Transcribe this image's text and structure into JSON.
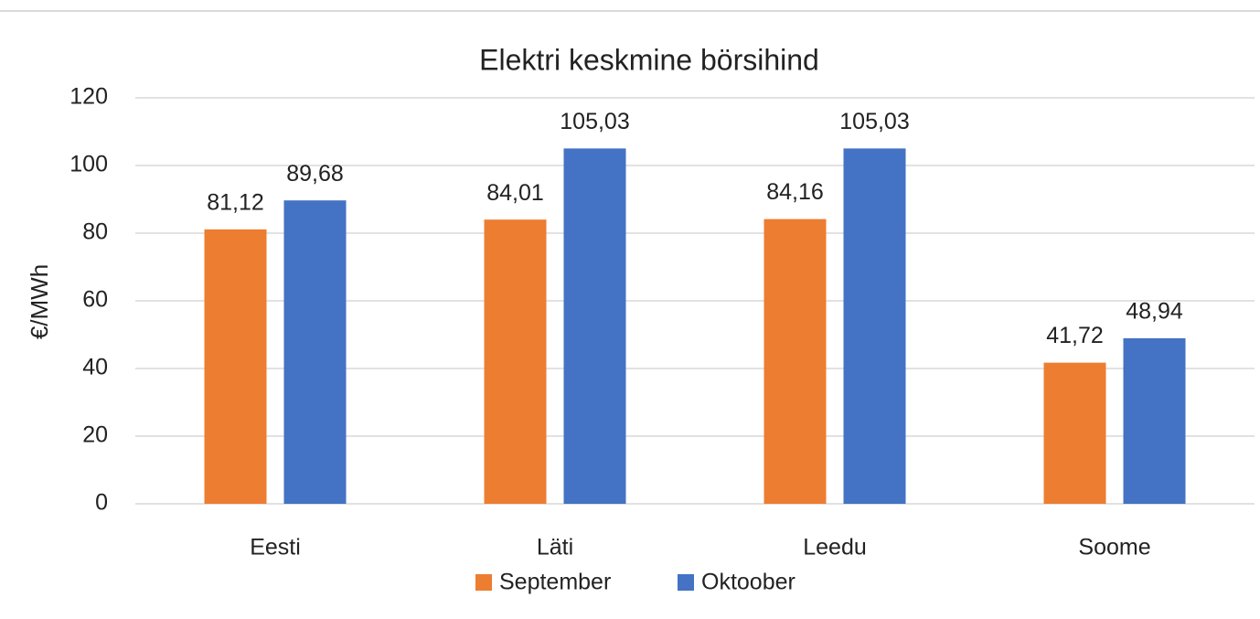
{
  "chart_data": {
    "type": "bar",
    "title": "Elektri keskmine börsihind",
    "y_label": "€/MWh",
    "categories": [
      "Eesti",
      "Läti",
      "Leedu",
      "Soome"
    ],
    "series": [
      {
        "name": "September",
        "color": "#ed7d31",
        "values": [
          81.12,
          84.01,
          84.16,
          41.72
        ],
        "value_labels": [
          "81,12",
          "84,01",
          "84,16",
          "41,72"
        ]
      },
      {
        "name": "Oktoober",
        "color": "#4472c4",
        "values": [
          89.68,
          105.03,
          105.03,
          48.94
        ],
        "value_labels": [
          "89,68",
          "105,03",
          "105,03",
          "48,94"
        ]
      }
    ],
    "ylim": [
      0,
      120
    ],
    "yticks": [
      0,
      20,
      40,
      60,
      80,
      100,
      120
    ],
    "grid": true,
    "legend": "bottom"
  }
}
